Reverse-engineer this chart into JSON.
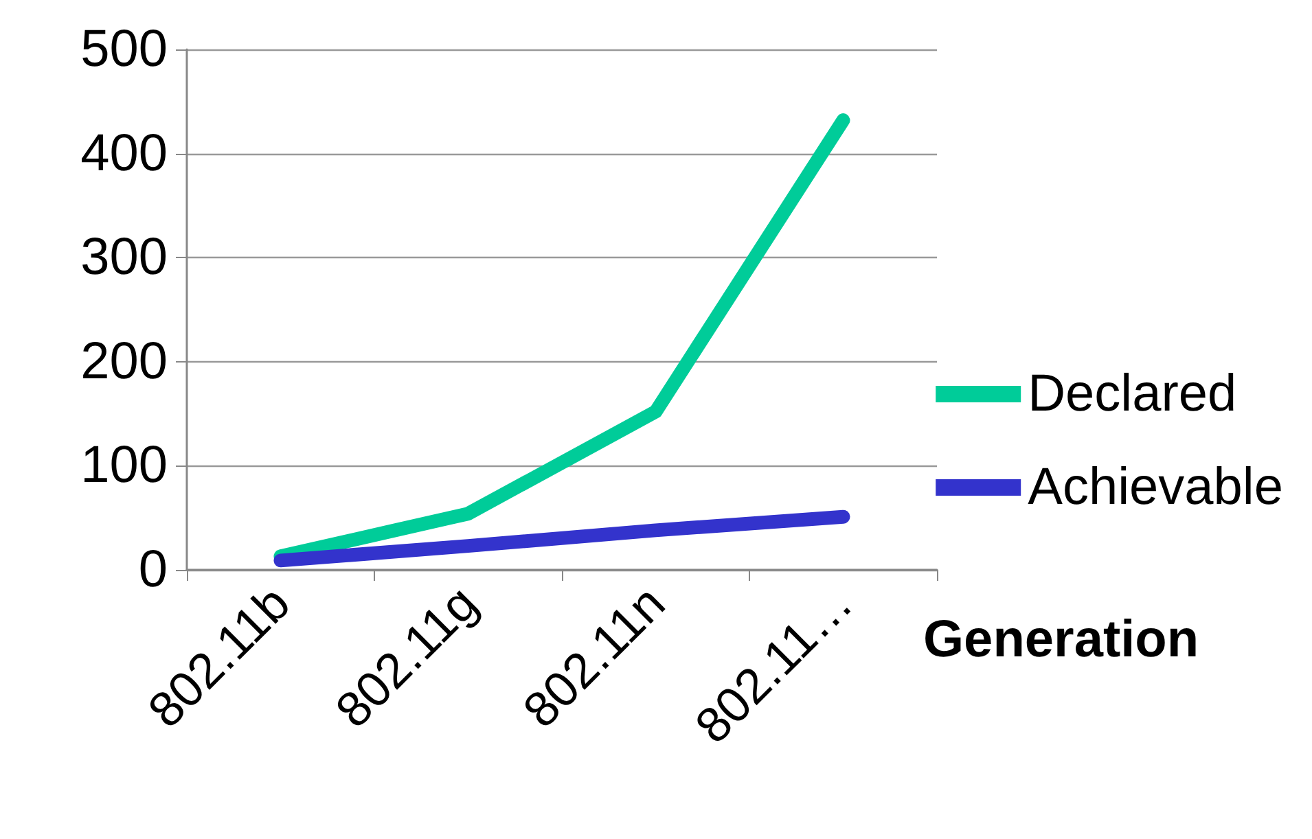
{
  "chart_data": {
    "type": "line",
    "xlabel": "Generation",
    "categories": [
      "802.11b",
      "802.11g",
      "802.11n",
      "802.11…"
    ],
    "series": [
      {
        "name": "Declared",
        "color": "#00cc99",
        "values": [
          13,
          54,
          152,
          432
        ]
      },
      {
        "name": "Achievable",
        "color": "#3333cc",
        "values": [
          9,
          23,
          38,
          51
        ]
      }
    ],
    "ylim": [
      0,
      500
    ],
    "yticks": [
      0,
      100,
      200,
      300,
      400,
      500
    ],
    "grid": "y",
    "legend": "right",
    "marker": "none",
    "line_style": "solid"
  }
}
